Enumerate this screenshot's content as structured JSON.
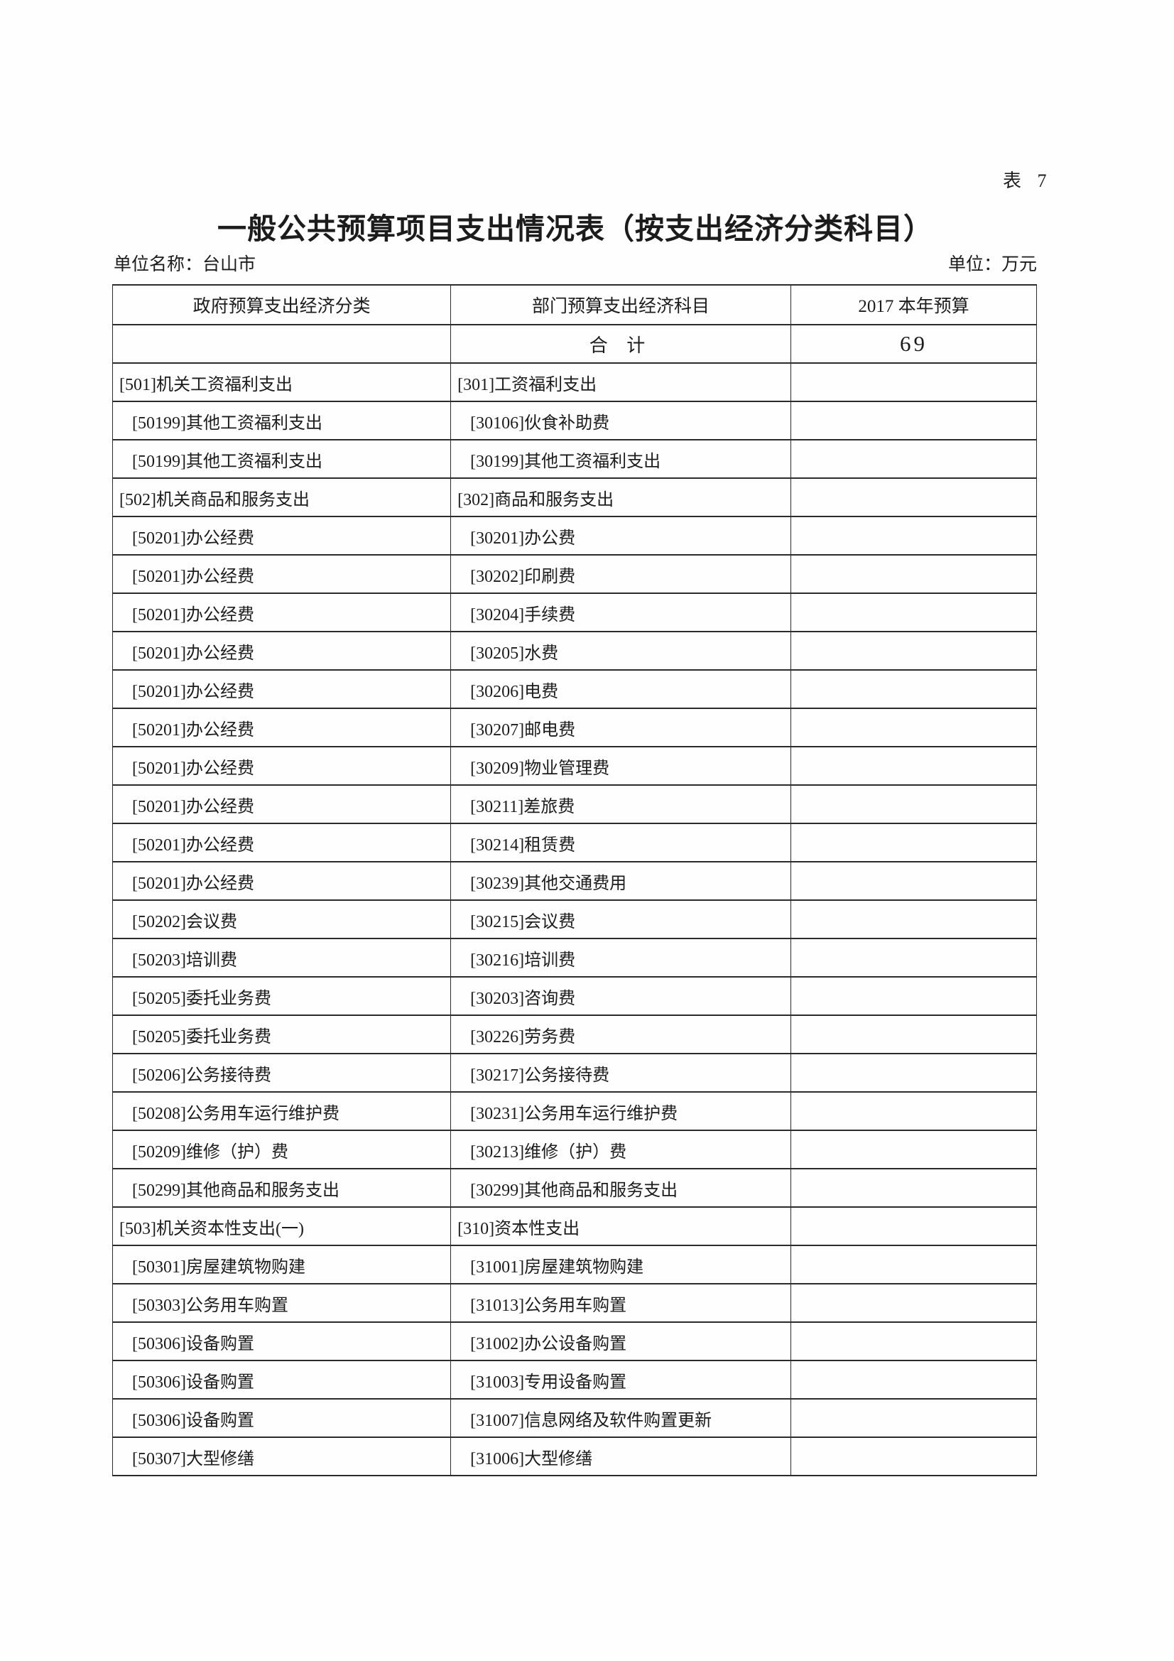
{
  "page": {
    "table_tag": "表 7",
    "title": "一般公共预算项目支出情况表（按支出经济分类科目）",
    "unit_name": "单位名称：台山市",
    "unit_measure": "单位：万元"
  },
  "table": {
    "headers": [
      "政府预算支出经济分类",
      "部门预算支出经济科目",
      "2017 本年预算"
    ],
    "total_row": {
      "gov": "",
      "dept": "合 计",
      "amount": "69"
    },
    "rows": [
      {
        "gov": "[501]机关工资福利支出",
        "dept": "[301]工资福利支出",
        "amount": "",
        "indent": false
      },
      {
        "gov": "[50199]其他工资福利支出",
        "dept": "[30106]伙食补助费",
        "amount": "",
        "indent": true
      },
      {
        "gov": "[50199]其他工资福利支出",
        "dept": "[30199]其他工资福利支出",
        "amount": "",
        "indent": true
      },
      {
        "gov": "[502]机关商品和服务支出",
        "dept": "[302]商品和服务支出",
        "amount": "",
        "indent": false
      },
      {
        "gov": "[50201]办公经费",
        "dept": "[30201]办公费",
        "amount": "",
        "indent": true
      },
      {
        "gov": "[50201]办公经费",
        "dept": "[30202]印刷费",
        "amount": "",
        "indent": true
      },
      {
        "gov": "[50201]办公经费",
        "dept": "[30204]手续费",
        "amount": "",
        "indent": true
      },
      {
        "gov": "[50201]办公经费",
        "dept": "[30205]水费",
        "amount": "",
        "indent": true
      },
      {
        "gov": "[50201]办公经费",
        "dept": "[30206]电费",
        "amount": "",
        "indent": true
      },
      {
        "gov": "[50201]办公经费",
        "dept": "[30207]邮电费",
        "amount": "",
        "indent": true
      },
      {
        "gov": "[50201]办公经费",
        "dept": "[30209]物业管理费",
        "amount": "",
        "indent": true
      },
      {
        "gov": "[50201]办公经费",
        "dept": "[30211]差旅费",
        "amount": "",
        "indent": true
      },
      {
        "gov": "[50201]办公经费",
        "dept": "[30214]租赁费",
        "amount": "",
        "indent": true
      },
      {
        "gov": "[50201]办公经费",
        "dept": "[30239]其他交通费用",
        "amount": "",
        "indent": true
      },
      {
        "gov": "[50202]会议费",
        "dept": "[30215]会议费",
        "amount": "",
        "indent": true
      },
      {
        "gov": "[50203]培训费",
        "dept": "[30216]培训费",
        "amount": "",
        "indent": true
      },
      {
        "gov": "[50205]委托业务费",
        "dept": "[30203]咨询费",
        "amount": "",
        "indent": true
      },
      {
        "gov": "[50205]委托业务费",
        "dept": "[30226]劳务费",
        "amount": "",
        "indent": true
      },
      {
        "gov": "[50206]公务接待费",
        "dept": "[30217]公务接待费",
        "amount": "",
        "indent": true
      },
      {
        "gov": "[50208]公务用车运行维护费",
        "dept": "[30231]公务用车运行维护费",
        "amount": "",
        "indent": true
      },
      {
        "gov": "[50209]维修（护）费",
        "dept": "[30213]维修（护）费",
        "amount": "",
        "indent": true
      },
      {
        "gov": "[50299]其他商品和服务支出",
        "dept": "[30299]其他商品和服务支出",
        "amount": "",
        "indent": true
      },
      {
        "gov": "[503]机关资本性支出(一)",
        "dept": "[310]资本性支出",
        "amount": "",
        "indent": false
      },
      {
        "gov": "[50301]房屋建筑物购建",
        "dept": "[31001]房屋建筑物购建",
        "amount": "",
        "indent": true
      },
      {
        "gov": "[50303]公务用车购置",
        "dept": "[31013]公务用车购置",
        "amount": "",
        "indent": true
      },
      {
        "gov": "[50306]设备购置",
        "dept": "[31002]办公设备购置",
        "amount": "",
        "indent": true
      },
      {
        "gov": "[50306]设备购置",
        "dept": "[31003]专用设备购置",
        "amount": "",
        "indent": true
      },
      {
        "gov": "[50306]设备购置",
        "dept": "[31007]信息网络及软件购置更新",
        "amount": "",
        "indent": true
      },
      {
        "gov": "[50307]大型修缮",
        "dept": "[31006]大型修缮",
        "amount": "",
        "indent": true
      }
    ]
  }
}
